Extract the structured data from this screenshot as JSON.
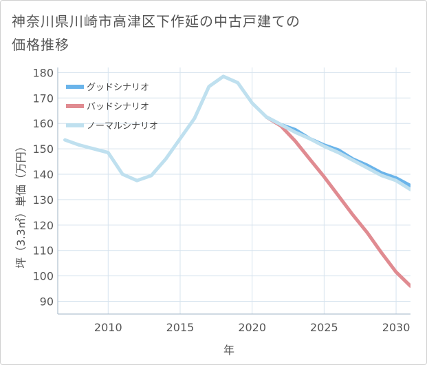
{
  "chart_data": {
    "type": "line",
    "title": "神奈川県川崎市高津区下作延の中古戸建ての価格推移",
    "xlabel": "年",
    "ylabel": "坪（3.3㎡）単価（万円）",
    "xlim": [
      2006.5,
      2031
    ],
    "ylim": [
      85,
      182
    ],
    "x_ticks": [
      2010,
      2015,
      2020,
      2025,
      2030
    ],
    "y_ticks": [
      90,
      100,
      110,
      120,
      130,
      140,
      150,
      160,
      170,
      180
    ],
    "legend_position": "top-left",
    "series": [
      {
        "name": "グッドシナリオ",
        "color": "#6ab4ea",
        "x": [
          2021,
          2022,
          2023,
          2024,
          2025,
          2026,
          2027,
          2028,
          2029,
          2030,
          2031
        ],
        "values": [
          162.5,
          159.5,
          157.5,
          154,
          151.5,
          149.5,
          146,
          143.5,
          140.5,
          138.5,
          135.5
        ]
      },
      {
        "name": "バッドシナリオ",
        "color": "#e08b91",
        "x": [
          2021,
          2022,
          2023,
          2024,
          2025,
          2026,
          2027,
          2028,
          2029,
          2030,
          2031
        ],
        "values": [
          162.5,
          159,
          153,
          146,
          139,
          131.5,
          124,
          117,
          109,
          101.5,
          96
        ]
      },
      {
        "name": "ノーマルシナリオ",
        "color": "#bfe0ef",
        "x": [
          2007,
          2008,
          2009,
          2010,
          2011,
          2012,
          2013,
          2014,
          2015,
          2016,
          2017,
          2018,
          2019,
          2020,
          2021,
          2022,
          2023,
          2024,
          2025,
          2026,
          2027,
          2028,
          2029,
          2030,
          2031
        ],
        "values": [
          153.5,
          151.5,
          150,
          148.5,
          140,
          137.5,
          139.5,
          146,
          154,
          162,
          174.5,
          178.5,
          176,
          168,
          162.5,
          159.5,
          156.5,
          154,
          151,
          148.5,
          145.5,
          142.5,
          139.5,
          137.5,
          134
        ]
      }
    ]
  }
}
